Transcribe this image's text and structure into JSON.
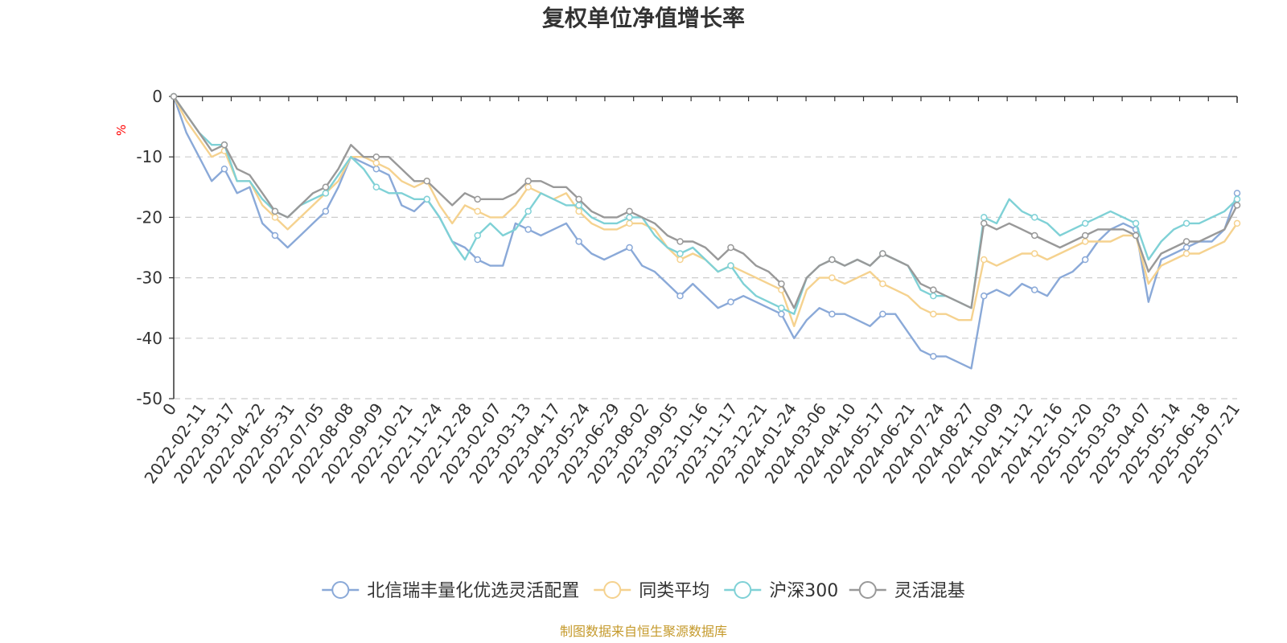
{
  "chart_data": {
    "type": "line",
    "title": "复权单位净值增长率",
    "ylabel": "%",
    "ylim": [
      -50,
      0
    ],
    "yticks": [
      0,
      -10,
      -20,
      -30,
      -40,
      -50
    ],
    "x_ticks": [
      "0",
      "2022-02-11",
      "2022-03-17",
      "2022-04-22",
      "2022-05-31",
      "2022-07-05",
      "2022-08-08",
      "2022-09-09",
      "2022-10-21",
      "2022-11-24",
      "2022-12-28",
      "2023-02-07",
      "2023-03-13",
      "2023-04-17",
      "2023-05-24",
      "2023-06-29",
      "2023-08-02",
      "2023-09-05",
      "2023-10-16",
      "2023-11-17",
      "2023-12-21",
      "2024-01-24",
      "2024-03-06",
      "2024-04-10",
      "2024-05-17",
      "2024-06-21",
      "2024-07-24",
      "2024-08-27",
      "2024-10-09",
      "2024-11-12",
      "2024-12-16",
      "2025-01-20",
      "2025-03-03",
      "2025-04-07",
      "2025-05-14",
      "2025-06-18",
      "2025-07-21"
    ],
    "grid": "horizontal dashed",
    "legend_position": "bottom",
    "series": [
      {
        "name": "北信瑞丰量化优选灵活配置",
        "color": "#8aa9d8",
        "values": [
          0,
          -6,
          -10,
          -14,
          -12,
          -16,
          -15,
          -21,
          -23,
          -25,
          -23,
          -21,
          -19,
          -15,
          -10,
          -11,
          -12,
          -13,
          -18,
          -19,
          -17,
          -20,
          -24,
          -25,
          -27,
          -28,
          -28,
          -21,
          -22,
          -23,
          -22,
          -21,
          -24,
          -26,
          -27,
          -26,
          -25,
          -28,
          -29,
          -31,
          -33,
          -31,
          -33,
          -35,
          -34,
          -33,
          -34,
          -35,
          -36,
          -40,
          -37,
          -35,
          -36,
          -36,
          -37,
          -38,
          -36,
          -36,
          -39,
          -42,
          -43,
          -43,
          -44,
          -45,
          -33,
          -32,
          -33,
          -31,
          -32,
          -33,
          -30,
          -29,
          -27,
          -24,
          -22,
          -21,
          -22,
          -34,
          -27,
          -26,
          -25,
          -24,
          -24,
          -22,
          -16
        ]
      },
      {
        "name": "同类平均",
        "color": "#f5d28f",
        "values": [
          0,
          -4,
          -7,
          -10,
          -9,
          -14,
          -14,
          -18,
          -20,
          -22,
          -20,
          -18,
          -16,
          -14,
          -10,
          -10,
          -11,
          -12,
          -14,
          -15,
          -14,
          -18,
          -21,
          -18,
          -19,
          -20,
          -20,
          -18,
          -15,
          -16,
          -17,
          -16,
          -19,
          -21,
          -22,
          -22,
          -21,
          -21,
          -22,
          -25,
          -27,
          -26,
          -27,
          -29,
          -28,
          -29,
          -30,
          -31,
          -32,
          -38,
          -32,
          -30,
          -30,
          -31,
          -30,
          -29,
          -31,
          -32,
          -33,
          -35,
          -36,
          -36,
          -37,
          -37,
          -27,
          -28,
          -27,
          -26,
          -26,
          -27,
          -26,
          -25,
          -24,
          -24,
          -24,
          -23,
          -23,
          -31,
          -28,
          -27,
          -26,
          -26,
          -25,
          -24,
          -21
        ]
      },
      {
        "name": "沪深300",
        "color": "#7fd1d6",
        "values": [
          0,
          -3,
          -6,
          -8,
          -8,
          -14,
          -14,
          -17,
          -19,
          -20,
          -18,
          -17,
          -16,
          -13,
          -10,
          -12,
          -15,
          -16,
          -16,
          -17,
          -17,
          -20,
          -24,
          -27,
          -23,
          -21,
          -23,
          -22,
          -19,
          -16,
          -17,
          -18,
          -18,
          -20,
          -21,
          -21,
          -20,
          -20,
          -23,
          -25,
          -26,
          -25,
          -27,
          -29,
          -28,
          -31,
          -33,
          -34,
          -35,
          -36,
          -30,
          -28,
          -27,
          -28,
          -27,
          -28,
          -26,
          -27,
          -28,
          -32,
          -33,
          -33,
          -34,
          -35,
          -20,
          -21,
          -17,
          -19,
          -20,
          -21,
          -23,
          -22,
          -21,
          -20,
          -19,
          -20,
          -21,
          -27,
          -24,
          -22,
          -21,
          -21,
          -20,
          -19,
          -17
        ]
      },
      {
        "name": "灵活混基",
        "color": "#999999",
        "values": [
          0,
          -3,
          -6,
          -9,
          -8,
          -12,
          -13,
          -16,
          -19,
          -20,
          -18,
          -16,
          -15,
          -12,
          -8,
          -10,
          -10,
          -10,
          -12,
          -14,
          -14,
          -16,
          -18,
          -16,
          -17,
          -17,
          -17,
          -16,
          -14,
          -14,
          -15,
          -15,
          -17,
          -19,
          -20,
          -20,
          -19,
          -20,
          -21,
          -23,
          -24,
          -24,
          -25,
          -27,
          -25,
          -26,
          -28,
          -29,
          -31,
          -35,
          -30,
          -28,
          -27,
          -28,
          -27,
          -28,
          -26,
          -27,
          -28,
          -31,
          -32,
          -33,
          -34,
          -35,
          -21,
          -22,
          -21,
          -22,
          -23,
          -24,
          -25,
          -24,
          -23,
          -22,
          -22,
          -22,
          -23,
          -29,
          -26,
          -25,
          -24,
          -24,
          -23,
          -22,
          -18
        ]
      }
    ]
  },
  "legend": [
    {
      "label": "北信瑞丰量化优选灵活配置",
      "color": "#8aa9d8"
    },
    {
      "label": "同类平均",
      "color": "#f5d28f"
    },
    {
      "label": "沪深300",
      "color": "#7fd1d6"
    },
    {
      "label": "灵活混基",
      "color": "#999999"
    }
  ],
  "source": "制图数据来自恒生聚源数据库"
}
